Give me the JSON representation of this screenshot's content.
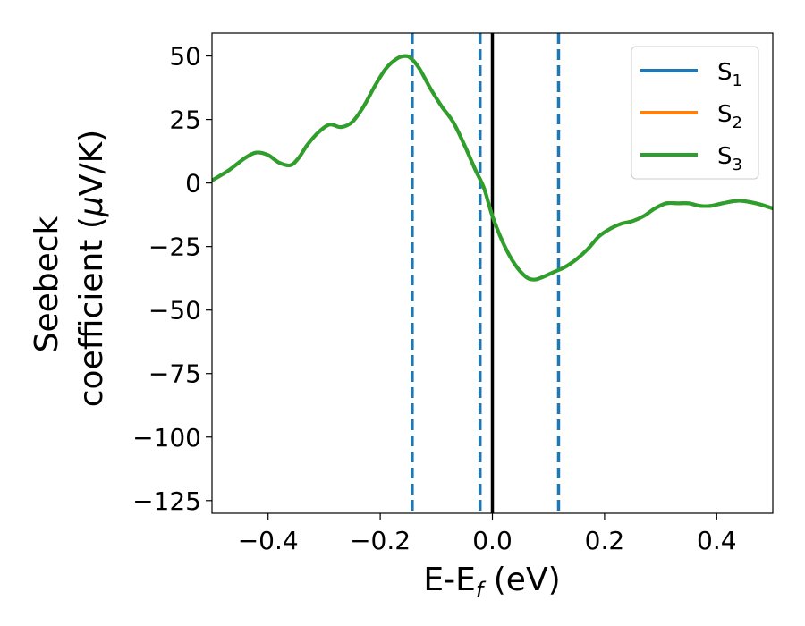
{
  "chart_data": {
    "type": "line",
    "title": "",
    "xlabel": "E-E",
    "xlabel_sub": "f",
    "xlabel_unit": " (eV)",
    "ylabel_line1": "Seebeck",
    "ylabel_line2": "coefficient  (",
    "ylabel_mu": "μ",
    "ylabel_unit": "V/K)",
    "xlim": [
      -0.5,
      0.5
    ],
    "ylim": [
      -130,
      59
    ],
    "xticks": [
      -0.4,
      -0.2,
      0.0,
      0.2,
      0.4
    ],
    "xtick_labels": [
      "−0.4",
      "−0.2",
      "0.0",
      "0.2",
      "0.4"
    ],
    "yticks": [
      50,
      25,
      0,
      -25,
      -50,
      -75,
      -100,
      -125
    ],
    "ytick_labels": [
      "50",
      "25",
      "0",
      "−25",
      "−50",
      "−75",
      "−100",
      "−125"
    ],
    "grid": false,
    "legend": {
      "placement": "top-right",
      "entries": [
        {
          "label": "S",
          "sub": "1",
          "color": "#1f77b4"
        },
        {
          "label": "S",
          "sub": "2",
          "color": "#ff7f0e"
        },
        {
          "label": "S",
          "sub": "3",
          "color": "#2ca02c"
        }
      ]
    },
    "series": [
      {
        "name": "S1",
        "color": "#1f77b4",
        "x": [
          -0.5,
          -0.47,
          -0.44,
          -0.42,
          -0.4,
          -0.38,
          -0.36,
          -0.345,
          -0.33,
          -0.31,
          -0.29,
          -0.27,
          -0.25,
          -0.23,
          -0.21,
          -0.19,
          -0.17,
          -0.155,
          -0.145,
          -0.13,
          -0.11,
          -0.09,
          -0.07,
          -0.05,
          -0.03,
          -0.015,
          0.0,
          0.02,
          0.04,
          0.06,
          0.075,
          0.09,
          0.11,
          0.13,
          0.15,
          0.17,
          0.19,
          0.21,
          0.23,
          0.25,
          0.27,
          0.29,
          0.31,
          0.33,
          0.35,
          0.37,
          0.39,
          0.41,
          0.44,
          0.47,
          0.5
        ],
        "y": [
          1,
          5,
          10,
          12,
          11,
          8,
          7,
          10,
          15,
          20,
          23,
          22,
          24,
          30,
          38,
          45,
          49,
          50,
          49,
          45,
          37,
          30,
          24,
          15,
          5,
          -2,
          -13,
          -24,
          -32,
          -37,
          -38,
          -37,
          -35,
          -33,
          -30,
          -26,
          -21,
          -18,
          -16,
          -15,
          -13,
          -10,
          -8,
          -8,
          -8,
          -9,
          -9,
          -8,
          -7,
          -8,
          -10
        ]
      },
      {
        "name": "S2",
        "color": "#ff7f0e",
        "x": [
          -0.5,
          -0.47,
          -0.44,
          -0.42,
          -0.4,
          -0.38,
          -0.36,
          -0.345,
          -0.33,
          -0.31,
          -0.29,
          -0.27,
          -0.25,
          -0.23,
          -0.21,
          -0.19,
          -0.17,
          -0.155,
          -0.145,
          -0.13,
          -0.11,
          -0.09,
          -0.07,
          -0.05,
          -0.03,
          -0.015,
          0.0,
          0.02,
          0.04,
          0.06,
          0.075,
          0.09,
          0.11,
          0.13,
          0.15,
          0.17,
          0.19,
          0.21,
          0.23,
          0.25,
          0.27,
          0.29,
          0.31,
          0.33,
          0.35,
          0.37,
          0.39,
          0.41,
          0.44,
          0.47,
          0.5
        ],
        "y": [
          1,
          5,
          10,
          12,
          11,
          8,
          7,
          10,
          15,
          20,
          23,
          22,
          24,
          30,
          38,
          45,
          49,
          50,
          49,
          45,
          37,
          30,
          24,
          15,
          5,
          -2,
          -13,
          -24,
          -32,
          -37,
          -38,
          -37,
          -35,
          -33,
          -30,
          -26,
          -21,
          -18,
          -16,
          -15,
          -13,
          -10,
          -8,
          -8,
          -8,
          -9,
          -9,
          -8,
          -7,
          -8,
          -10
        ]
      },
      {
        "name": "S3",
        "color": "#2ca02c",
        "x": [
          -0.5,
          -0.47,
          -0.44,
          -0.42,
          -0.4,
          -0.38,
          -0.36,
          -0.345,
          -0.33,
          -0.31,
          -0.29,
          -0.27,
          -0.25,
          -0.23,
          -0.21,
          -0.19,
          -0.17,
          -0.155,
          -0.145,
          -0.13,
          -0.11,
          -0.09,
          -0.07,
          -0.05,
          -0.03,
          -0.015,
          0.0,
          0.02,
          0.04,
          0.06,
          0.075,
          0.09,
          0.11,
          0.13,
          0.15,
          0.17,
          0.19,
          0.21,
          0.23,
          0.25,
          0.27,
          0.29,
          0.31,
          0.33,
          0.35,
          0.37,
          0.39,
          0.41,
          0.44,
          0.47,
          0.5
        ],
        "y": [
          1,
          5,
          10,
          12,
          11,
          8,
          7,
          10,
          15,
          20,
          23,
          22,
          24,
          30,
          38,
          45,
          49,
          50,
          49,
          45,
          37,
          30,
          24,
          15,
          5,
          -2,
          -13,
          -24,
          -32,
          -37,
          -38,
          -37,
          -35,
          -33,
          -30,
          -26,
          -21,
          -18,
          -16,
          -15,
          -13,
          -10,
          -8,
          -8,
          -8,
          -9,
          -9,
          -8,
          -7,
          -8,
          -10
        ]
      }
    ],
    "reference_lines": {
      "solid": {
        "x": 0.0,
        "color": "#000000"
      },
      "dashed": {
        "x": [
          -0.143,
          -0.022,
          0.118
        ],
        "color": "#1f77b4"
      }
    }
  }
}
